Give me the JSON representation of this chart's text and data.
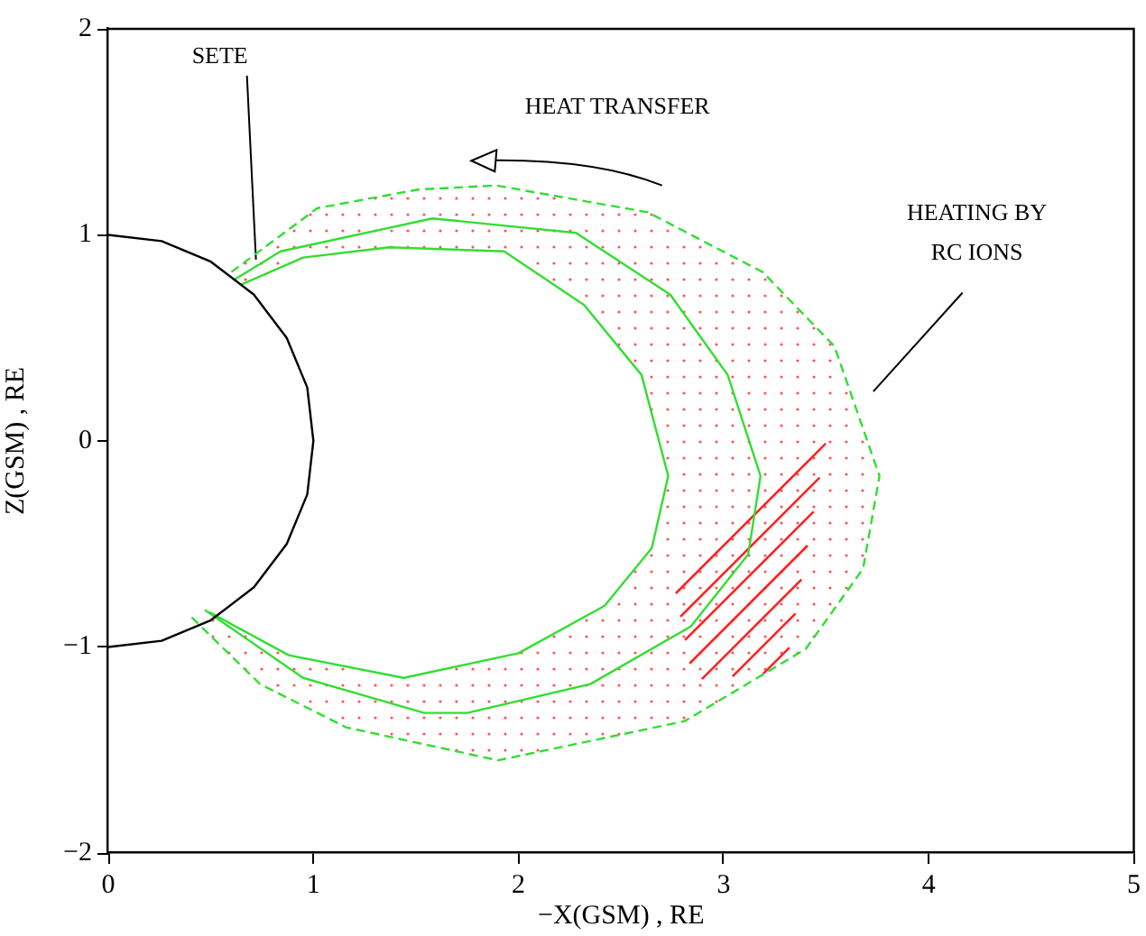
{
  "chart_data": {
    "type": "line",
    "xlabel": "−X(GSM) , RE",
    "ylabel": "Z(GSM) , RE",
    "xlim": [
      0,
      5
    ],
    "ylim": [
      -2,
      2
    ],
    "xticks": [
      0,
      1,
      2,
      3,
      4,
      5
    ],
    "yticks": [
      -2,
      -1,
      0,
      1,
      2
    ],
    "grid": false,
    "legend": false,
    "marker": "none",
    "series": [
      {
        "color": "#000000",
        "line_style": "solid",
        "x": [
          0,
          0.26,
          0.5,
          0.71,
          0.87,
          0.97,
          1,
          0.97,
          0.87,
          0.71,
          0.5,
          0.26,
          0
        ],
        "values": [
          1,
          0.97,
          0.87,
          0.71,
          0.5,
          0.26,
          0,
          -0.26,
          -0.5,
          -0.71,
          -0.87,
          -0.97,
          -1
        ]
      },
      {
        "color": "#33dd33",
        "line_style": "dashed",
        "x": [
          0.6,
          1.02,
          1.51,
          1.89,
          2.63,
          3.19,
          3.54,
          3.76,
          3.68,
          3.4,
          2.81,
          1.9,
          1.16,
          0.74,
          0.4
        ],
        "values": [
          0.82,
          1.13,
          1.22,
          1.24,
          1.11,
          0.82,
          0.46,
          -0.17,
          -0.62,
          -1.01,
          -1.36,
          -1.55,
          -1.39,
          -1.18,
          -0.85
        ]
      },
      {
        "color": "#33dd33",
        "line_style": "solid",
        "x": [
          0.61,
          0.84,
          1.58,
          2.28,
          2.74,
          3.02,
          3.18,
          3.12,
          2.84,
          2.35,
          1.75,
          1.54,
          0.95,
          0.47
        ],
        "values": [
          0.78,
          0.92,
          1.08,
          1.01,
          0.71,
          0.32,
          -0.17,
          -0.55,
          -0.9,
          -1.18,
          -1.32,
          -1.32,
          -1.15,
          -0.82
        ]
      },
      {
        "color": "#33dd33",
        "line_style": "solid",
        "x": [
          0.65,
          0.95,
          1.37,
          1.93,
          2.32,
          2.6,
          2.73,
          2.65,
          2.42,
          2.0,
          1.44,
          0.88,
          0.49
        ],
        "values": [
          0.76,
          0.89,
          0.94,
          0.92,
          0.66,
          0.32,
          -0.17,
          -0.52,
          -0.8,
          -1.03,
          -1.15,
          -1.04,
          -0.83
        ]
      }
    ],
    "annotations": [
      {
        "text": "SETE",
        "x": 0.72,
        "y": 0.88
      },
      "HEAT TRANSFER",
      "HEATING BY RC IONS"
    ]
  }
}
